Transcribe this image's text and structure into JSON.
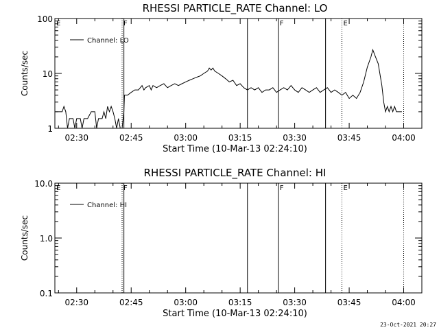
{
  "chart_data": [
    {
      "type": "line",
      "title": "RHESSI PARTICLE_RATE Channel: LO",
      "xlabel": "Start Time (10-Mar-13 02:24:10)",
      "ylabel": "Counts/sec",
      "y_scale": "log",
      "ylim": [
        1,
        100
      ],
      "xlim": [
        "02:24",
        "04:05"
      ],
      "x_tick_labels": [
        "02:30",
        "02:45",
        "03:00",
        "03:15",
        "03:30",
        "03:45",
        "04:00"
      ],
      "y_tick_labels": [
        "1",
        "10",
        "100"
      ],
      "legend": {
        "entries": [
          "Channel: LO"
        ],
        "placement": "top-left"
      },
      "grid": false,
      "markers": [
        {
          "label": "F",
          "time": "02:42:30",
          "style": "dotted"
        },
        {
          "label": "",
          "time": "02:43:00",
          "style": "solid"
        },
        {
          "label": "",
          "time": "03:17:00",
          "style": "solid"
        },
        {
          "label": "F",
          "time": "03:25:30",
          "style": "solid"
        },
        {
          "label": "",
          "time": "03:38:30",
          "style": "solid"
        },
        {
          "label": "E",
          "time": "03:43:00",
          "style": "dotted"
        },
        {
          "label": "",
          "time": "04:00:00",
          "style": "dotted"
        }
      ],
      "edge_label": "E",
      "series": [
        {
          "name": "Channel: LO",
          "points": [
            [
              "02:24:10",
              2
            ],
            [
              "02:26:00",
              2
            ],
            [
              "02:26:30",
              2.5
            ],
            [
              "02:27:00",
              2
            ],
            [
              "02:27:30",
              1
            ],
            [
              "02:28:00",
              1.5
            ],
            [
              "02:29:00",
              1.5
            ],
            [
              "02:29:30",
              1
            ],
            [
              "02:30:00",
              1.5
            ],
            [
              "02:31:00",
              1.5
            ],
            [
              "02:31:30",
              1
            ],
            [
              "02:32:00",
              1.5
            ],
            [
              "02:33:00",
              1.5
            ],
            [
              "02:34:00",
              2
            ],
            [
              "02:35:00",
              2
            ],
            [
              "02:35:30",
              1
            ],
            [
              "02:36:00",
              1.5
            ],
            [
              "02:37:00",
              1.5
            ],
            [
              "02:37:30",
              2
            ],
            [
              "02:38:00",
              1.5
            ],
            [
              "02:38:30",
              2.5
            ],
            [
              "02:39:00",
              2
            ],
            [
              "02:39:30",
              2.5
            ],
            [
              "02:40:00",
              2
            ],
            [
              "02:40:30",
              1.5
            ],
            [
              "02:41:00",
              1
            ],
            [
              "02:41:30",
              1.5
            ],
            [
              "02:42:00",
              1
            ],
            [
              "02:42:30",
              1
            ],
            [
              "02:43:00",
              2
            ],
            [
              "02:43:10",
              4
            ],
            [
              "02:44:00",
              4
            ],
            [
              "02:45:00",
              4.5
            ],
            [
              "02:46:00",
              5
            ],
            [
              "02:47:00",
              5
            ],
            [
              "02:48:00",
              6
            ],
            [
              "02:48:30",
              5
            ],
            [
              "02:49:00",
              5.5
            ],
            [
              "02:50:00",
              6
            ],
            [
              "02:50:30",
              5
            ],
            [
              "02:51:00",
              6
            ],
            [
              "02:52:00",
              5.5
            ],
            [
              "02:53:00",
              6
            ],
            [
              "02:54:00",
              6.5
            ],
            [
              "02:55:00",
              5.5
            ],
            [
              "02:56:00",
              6
            ],
            [
              "02:57:00",
              6.5
            ],
            [
              "02:58:00",
              6
            ],
            [
              "02:59:00",
              6.5
            ],
            [
              "03:00:00",
              7
            ],
            [
              "03:01:00",
              7.5
            ],
            [
              "03:02:00",
              8
            ],
            [
              "03:03:00",
              8.5
            ],
            [
              "03:04:00",
              9
            ],
            [
              "03:05:00",
              10
            ],
            [
              "03:06:00",
              11
            ],
            [
              "03:06:30",
              12.5
            ],
            [
              "03:07:00",
              11.5
            ],
            [
              "03:07:30",
              12.5
            ],
            [
              "03:08:00",
              11
            ],
            [
              "03:09:00",
              10
            ],
            [
              "03:10:00",
              9
            ],
            [
              "03:11:00",
              8
            ],
            [
              "03:12:00",
              7
            ],
            [
              "03:13:00",
              7.5
            ],
            [
              "03:14:00",
              6
            ],
            [
              "03:15:00",
              6.5
            ],
            [
              "03:16:00",
              5.5
            ],
            [
              "03:17:00",
              5
            ],
            [
              "03:18:00",
              5.5
            ],
            [
              "03:19:00",
              5
            ],
            [
              "03:20:00",
              5.5
            ],
            [
              "03:21:00",
              4.5
            ],
            [
              "03:22:00",
              5
            ],
            [
              "03:23:00",
              5
            ],
            [
              "03:24:00",
              5.5
            ],
            [
              "03:25:00",
              4.5
            ],
            [
              "03:26:00",
              5
            ],
            [
              "03:27:00",
              5.5
            ],
            [
              "03:28:00",
              5
            ],
            [
              "03:29:00",
              6
            ],
            [
              "03:30:00",
              5
            ],
            [
              "03:31:00",
              4.5
            ],
            [
              "03:32:00",
              5.5
            ],
            [
              "03:33:00",
              5
            ],
            [
              "03:34:00",
              4.5
            ],
            [
              "03:35:00",
              5
            ],
            [
              "03:36:00",
              5.5
            ],
            [
              "03:37:00",
              4.5
            ],
            [
              "03:38:00",
              5
            ],
            [
              "03:39:00",
              5.5
            ],
            [
              "03:40:00",
              4.5
            ],
            [
              "03:41:00",
              5
            ],
            [
              "03:42:00",
              4.5
            ],
            [
              "03:43:00",
              4
            ],
            [
              "03:44:00",
              4.5
            ],
            [
              "03:45:00",
              3.5
            ],
            [
              "03:46:00",
              4
            ],
            [
              "03:47:00",
              3.5
            ],
            [
              "03:48:00",
              4.5
            ],
            [
              "03:49:00",
              7
            ],
            [
              "03:50:00",
              13
            ],
            [
              "03:51:00",
              20
            ],
            [
              "03:51:30",
              27
            ],
            [
              "03:52:00",
              22
            ],
            [
              "03:53:00",
              15
            ],
            [
              "03:54:00",
              6
            ],
            [
              "03:54:30",
              3
            ],
            [
              "03:55:00",
              2
            ],
            [
              "03:55:30",
              2.5
            ],
            [
              "03:56:00",
              2
            ],
            [
              "03:56:30",
              2.5
            ],
            [
              "03:57:00",
              2
            ],
            [
              "03:57:30",
              2.5
            ],
            [
              "03:58:00",
              2
            ],
            [
              "03:59:30",
              2
            ]
          ]
        }
      ]
    },
    {
      "type": "line",
      "title": "RHESSI PARTICLE_RATE Channel: HI",
      "xlabel": "Start Time (10-Mar-13 02:24:10)",
      "ylabel": "Counts/sec",
      "y_scale": "log",
      "ylim": [
        0.1,
        10
      ],
      "xlim": [
        "02:24",
        "04:05"
      ],
      "x_tick_labels": [
        "02:30",
        "02:45",
        "03:00",
        "03:15",
        "03:30",
        "03:45",
        "04:00"
      ],
      "y_tick_labels": [
        "0.1",
        "1.0",
        "10.0"
      ],
      "legend": {
        "entries": [
          "Channel: HI"
        ],
        "placement": "top-left"
      },
      "grid": false,
      "markers": [
        {
          "label": "F",
          "time": "02:42:30",
          "style": "dotted"
        },
        {
          "label": "",
          "time": "02:43:00",
          "style": "solid"
        },
        {
          "label": "",
          "time": "03:17:00",
          "style": "solid"
        },
        {
          "label": "F",
          "time": "03:25:30",
          "style": "solid"
        },
        {
          "label": "",
          "time": "03:38:30",
          "style": "solid"
        },
        {
          "label": "E",
          "time": "03:43:00",
          "style": "dotted"
        },
        {
          "label": "",
          "time": "04:00:00",
          "style": "dotted"
        }
      ],
      "edge_label": "E",
      "series": [
        {
          "name": "Channel: HI",
          "points": []
        }
      ]
    }
  ],
  "timestamp": "23-Oct-2021 20:27"
}
